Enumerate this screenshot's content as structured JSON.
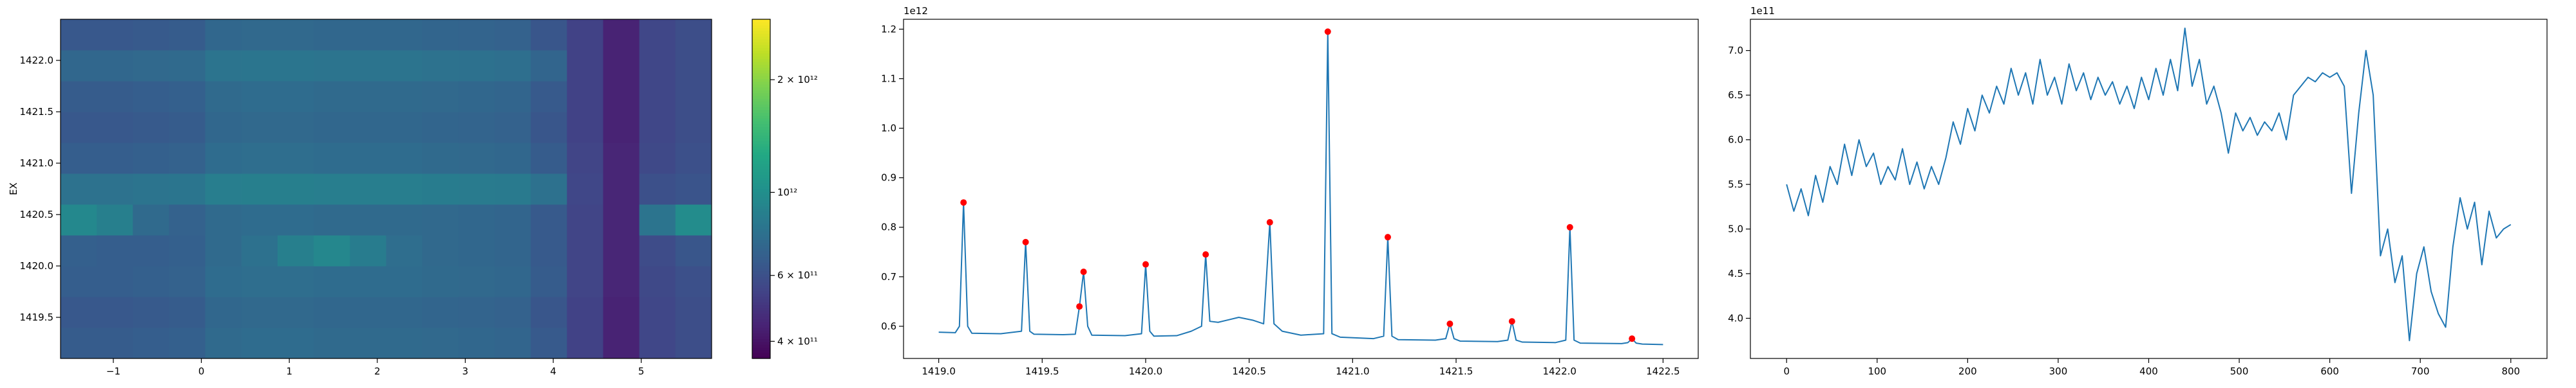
{
  "chart_data": [
    {
      "type": "heatmap",
      "ylabel": "EX",
      "xlim": [
        -1.6,
        5.8
      ],
      "ylim": [
        1419.1,
        1422.4
      ],
      "xticks": [
        {
          "value": -1,
          "label": "−1"
        },
        0,
        1,
        2,
        3,
        4,
        5
      ],
      "yticks": [
        1419.5,
        {
          "value": 1420,
          "label": "1420.0"
        },
        1420.5,
        {
          "value": 1421,
          "label": "1421.0"
        },
        1421.5,
        {
          "value": 1422,
          "label": "1422.0"
        }
      ],
      "colormap": "viridis",
      "cscale": "log",
      "clim": [
        360000000000.0,
        2900000000000.0
      ],
      "cticks": [
        {
          "value": 400000000000.0,
          "label": "4 × 10¹¹"
        },
        {
          "value": 600000000000.0,
          "label": "6 × 10¹¹"
        },
        {
          "value": 1000000000000.0,
          "label": "10¹²"
        },
        {
          "value": 2000000000000.0,
          "label": "2 × 10¹²"
        }
      ],
      "z": [
        [
          660000000000.0,
          660000000000.0,
          670000000000.0,
          680000000000.0,
          740000000000.0,
          750000000000.0,
          750000000000.0,
          740000000000.0,
          740000000000.0,
          740000000000.0,
          730000000000.0,
          720000000000.0,
          710000000000.0,
          650000000000.0,
          540000000000.0,
          440000000000.0,
          560000000000.0,
          590000000000.0
        ],
        [
          640000000000.0,
          640000000000.0,
          650000000000.0,
          660000000000.0,
          720000000000.0,
          730000000000.0,
          730000000000.0,
          720000000000.0,
          720000000000.0,
          720000000000.0,
          710000000000.0,
          700000000000.0,
          690000000000.0,
          630000000000.0,
          540000000000.0,
          440000000000.0,
          560000000000.0,
          590000000000.0
        ],
        [
          670000000000.0,
          670000000000.0,
          680000000000.0,
          690000000000.0,
          750000000000.0,
          760000000000.0,
          760000000000.0,
          750000000000.0,
          750000000000.0,
          750000000000.0,
          740000000000.0,
          730000000000.0,
          720000000000.0,
          660000000000.0,
          550000000000.0,
          450000000000.0,
          570000000000.0,
          600000000000.0
        ],
        [
          680000000000.0,
          670000000000.0,
          670000000000.0,
          680000000000.0,
          740000000000.0,
          780000000000.0,
          880000000000.0,
          940000000000.0,
          860000000000.0,
          760000000000.0,
          730000000000.0,
          720000000000.0,
          710000000000.0,
          650000000000.0,
          550000000000.0,
          450000000000.0,
          580000000000.0,
          630000000000.0
        ],
        [
          950000000000.0,
          880000000000.0,
          740000000000.0,
          690000000000.0,
          740000000000.0,
          750000000000.0,
          750000000000.0,
          740000000000.0,
          740000000000.0,
          740000000000.0,
          730000000000.0,
          720000000000.0,
          710000000000.0,
          650000000000.0,
          550000000000.0,
          450000000000.0,
          800000000000.0,
          980000000000.0
        ],
        [
          790000000000.0,
          790000000000.0,
          800000000000.0,
          810000000000.0,
          870000000000.0,
          880000000000.0,
          880000000000.0,
          870000000000.0,
          870000000000.0,
          870000000000.0,
          860000000000.0,
          850000000000.0,
          840000000000.0,
          780000000000.0,
          560000000000.0,
          450000000000.0,
          600000000000.0,
          620000000000.0
        ],
        [
          670000000000.0,
          670000000000.0,
          680000000000.0,
          690000000000.0,
          750000000000.0,
          760000000000.0,
          760000000000.0,
          750000000000.0,
          750000000000.0,
          750000000000.0,
          740000000000.0,
          730000000000.0,
          720000000000.0,
          660000000000.0,
          550000000000.0,
          450000000000.0,
          570000000000.0,
          600000000000.0
        ],
        [
          640000000000.0,
          640000000000.0,
          650000000000.0,
          660000000000.0,
          720000000000.0,
          730000000000.0,
          730000000000.0,
          720000000000.0,
          720000000000.0,
          720000000000.0,
          710000000000.0,
          700000000000.0,
          690000000000.0,
          630000000000.0,
          540000000000.0,
          440000000000.0,
          560000000000.0,
          590000000000.0
        ],
        [
          660000000000.0,
          660000000000.0,
          670000000000.0,
          680000000000.0,
          740000000000.0,
          750000000000.0,
          750000000000.0,
          740000000000.0,
          740000000000.0,
          740000000000.0,
          730000000000.0,
          720000000000.0,
          710000000000.0,
          650000000000.0,
          540000000000.0,
          440000000000.0,
          560000000000.0,
          590000000000.0
        ],
        [
          720000000000.0,
          720000000000.0,
          730000000000.0,
          740000000000.0,
          800000000000.0,
          810000000000.0,
          810000000000.0,
          800000000000.0,
          800000000000.0,
          800000000000.0,
          790000000000.0,
          780000000000.0,
          770000000000.0,
          710000000000.0,
          540000000000.0,
          440000000000.0,
          560000000000.0,
          590000000000.0
        ],
        [
          640000000000.0,
          640000000000.0,
          650000000000.0,
          660000000000.0,
          720000000000.0,
          730000000000.0,
          730000000000.0,
          720000000000.0,
          720000000000.0,
          720000000000.0,
          710000000000.0,
          700000000000.0,
          690000000000.0,
          630000000000.0,
          540000000000.0,
          440000000000.0,
          560000000000.0,
          590000000000.0
        ]
      ]
    },
    {
      "type": "line",
      "offset_text": "1e12",
      "xlim": [
        1418.83,
        1422.67
      ],
      "ylim": [
        0.535,
        1.22
      ],
      "xticks": [
        {
          "value": 1419,
          "label": "1419.0"
        },
        1419.5,
        {
          "value": 1420,
          "label": "1420.0"
        },
        1420.5,
        {
          "value": 1421,
          "label": "1421.0"
        },
        1421.5,
        {
          "value": 1422,
          "label": "1422.0"
        },
        1422.5
      ],
      "yticks": [
        0.6,
        0.7,
        0.8,
        0.9,
        {
          "value": 1,
          "label": "1.0"
        },
        1.1,
        1.2
      ],
      "series": [
        {
          "color": "#1f77b4",
          "x": [
            1419.0,
            1419.08,
            1419.1,
            1419.12,
            1419.14,
            1419.16,
            1419.3,
            1419.4,
            1419.42,
            1419.44,
            1419.46,
            1419.6,
            1419.66,
            1419.68,
            1419.7,
            1419.72,
            1419.74,
            1419.9,
            1419.98,
            1420.0,
            1420.02,
            1420.04,
            1420.15,
            1420.22,
            1420.27,
            1420.29,
            1420.31,
            1420.35,
            1420.45,
            1420.52,
            1420.57,
            1420.6,
            1420.62,
            1420.66,
            1420.75,
            1420.86,
            1420.88,
            1420.9,
            1420.94,
            1421.1,
            1421.15,
            1421.17,
            1421.19,
            1421.22,
            1421.4,
            1421.45,
            1421.47,
            1421.49,
            1421.52,
            1421.7,
            1421.75,
            1421.77,
            1421.79,
            1421.82,
            1421.98,
            1422.03,
            1422.05,
            1422.07,
            1422.1,
            1422.3,
            1422.33,
            1422.35,
            1422.37,
            1422.4,
            1422.5
          ],
          "values": [
            0.588,
            0.587,
            0.6,
            0.85,
            0.6,
            0.586,
            0.585,
            0.59,
            0.77,
            0.59,
            0.584,
            0.583,
            0.584,
            0.64,
            0.71,
            0.6,
            0.582,
            0.581,
            0.585,
            0.725,
            0.59,
            0.58,
            0.581,
            0.59,
            0.6,
            0.745,
            0.61,
            0.608,
            0.618,
            0.612,
            0.605,
            0.81,
            0.605,
            0.59,
            0.582,
            0.585,
            1.195,
            0.585,
            0.578,
            0.575,
            0.58,
            0.78,
            0.58,
            0.573,
            0.572,
            0.575,
            0.605,
            0.575,
            0.57,
            0.569,
            0.572,
            0.61,
            0.572,
            0.568,
            0.567,
            0.572,
            0.8,
            0.572,
            0.566,
            0.565,
            0.567,
            0.575,
            0.566,
            0.564,
            0.563
          ]
        },
        {
          "color": "#ff0000",
          "marker": "o",
          "x": [
            1419.12,
            1419.42,
            1419.68,
            1419.7,
            1420.0,
            1420.29,
            1420.6,
            1420.88,
            1421.17,
            1421.47,
            1421.77,
            1422.05,
            1422.35
          ],
          "values": [
            0.85,
            0.77,
            0.64,
            0.71,
            0.725,
            0.745,
            0.81,
            1.195,
            0.78,
            0.605,
            0.61,
            0.8,
            0.575
          ]
        }
      ]
    },
    {
      "type": "line",
      "offset_text": "1e11",
      "xlim": [
        -40,
        840
      ],
      "ylim": [
        3.55,
        7.35
      ],
      "xticks": [
        0,
        100,
        200,
        300,
        400,
        500,
        600,
        700,
        800
      ],
      "yticks": [
        {
          "value": 4,
          "label": "4.0"
        },
        4.5,
        {
          "value": 5,
          "label": "5.0"
        },
        5.5,
        {
          "value": 6,
          "label": "6.0"
        },
        6.5,
        {
          "value": 7,
          "label": "7.0"
        }
      ],
      "series": [
        {
          "color": "#1f77b4",
          "x": [
            0,
            8,
            16,
            24,
            32,
            40,
            48,
            56,
            64,
            72,
            80,
            88,
            96,
            104,
            112,
            120,
            128,
            136,
            144,
            152,
            160,
            168,
            176,
            184,
            192,
            200,
            208,
            216,
            224,
            232,
            240,
            248,
            256,
            264,
            272,
            280,
            288,
            296,
            304,
            312,
            320,
            328,
            336,
            344,
            352,
            360,
            368,
            376,
            384,
            392,
            400,
            408,
            416,
            424,
            432,
            440,
            448,
            456,
            464,
            472,
            480,
            488,
            496,
            504,
            512,
            520,
            528,
            536,
            544,
            552,
            560,
            568,
            576,
            584,
            592,
            600,
            608,
            616,
            624,
            632,
            640,
            648,
            656,
            664,
            672,
            680,
            688,
            696,
            704,
            712,
            720,
            728,
            736,
            744,
            752,
            760,
            768,
            776,
            784,
            792,
            800
          ],
          "values": [
            5.5,
            5.2,
            5.45,
            5.15,
            5.6,
            5.3,
            5.7,
            5.5,
            5.95,
            5.6,
            6.0,
            5.7,
            5.85,
            5.5,
            5.7,
            5.55,
            5.9,
            5.5,
            5.75,
            5.45,
            5.7,
            5.5,
            5.8,
            6.2,
            5.95,
            6.35,
            6.1,
            6.5,
            6.3,
            6.6,
            6.4,
            6.8,
            6.5,
            6.75,
            6.4,
            6.9,
            6.5,
            6.7,
            6.4,
            6.85,
            6.55,
            6.75,
            6.45,
            6.7,
            6.5,
            6.65,
            6.4,
            6.6,
            6.35,
            6.7,
            6.45,
            6.8,
            6.5,
            6.9,
            6.55,
            7.25,
            6.6,
            6.9,
            6.4,
            6.6,
            6.3,
            5.85,
            6.3,
            6.1,
            6.25,
            6.05,
            6.2,
            6.1,
            6.3,
            6.0,
            6.5,
            6.6,
            6.7,
            6.65,
            6.75,
            6.7,
            6.75,
            6.6,
            5.4,
            6.3,
            7.0,
            6.5,
            4.7,
            5.0,
            4.4,
            4.7,
            3.75,
            4.5,
            4.8,
            4.3,
            4.05,
            3.9,
            4.8,
            5.35,
            5.0,
            5.3,
            4.6,
            5.2,
            4.9,
            5.0,
            5.05
          ]
        }
      ]
    }
  ]
}
